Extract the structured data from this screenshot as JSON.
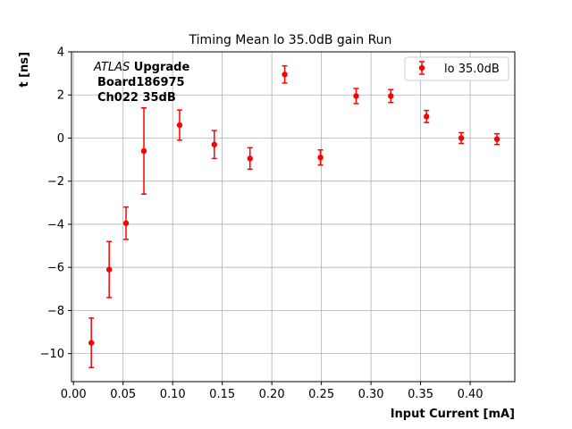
{
  "chart_data": {
    "type": "scatter",
    "title": "Timing Mean lo 35.0dB gain Run",
    "xlabel": "Input Current [mA]",
    "ylabel": "t [ns]",
    "xlim": [
      -0.002,
      0.445
    ],
    "ylim": [
      -11.3,
      4.0
    ],
    "x_ticks": [
      0.0,
      0.05,
      0.1,
      0.15,
      0.2,
      0.25,
      0.3,
      0.35,
      0.4
    ],
    "x_tick_labels": [
      "0.00",
      "0.05",
      "0.10",
      "0.15",
      "0.20",
      "0.25",
      "0.30",
      "0.35",
      "0.40"
    ],
    "y_ticks": [
      -10,
      -8,
      -6,
      -4,
      -2,
      0,
      2,
      4
    ],
    "y_tick_labels": [
      "−10",
      "−8",
      "−6",
      "−4",
      "−2",
      "0",
      "2",
      "4"
    ],
    "grid": true,
    "legend_position": "top-right",
    "annotation": {
      "line1_italic": "ATLAS",
      "line1_bold": " Upgrade",
      "line2": "Board186975",
      "line3": "Ch022 35dB"
    },
    "series": [
      {
        "name": "lo 35.0dB",
        "color": "#ff0000",
        "x": [
          0.018,
          0.036,
          0.053,
          0.071,
          0.107,
          0.142,
          0.178,
          0.213,
          0.249,
          0.285,
          0.32,
          0.356,
          0.391,
          0.427
        ],
        "y": [
          -9.5,
          -6.1,
          -3.95,
          -0.6,
          0.6,
          -0.3,
          -0.95,
          2.95,
          -0.9,
          1.95,
          1.95,
          1.0,
          0.0,
          -0.05
        ],
        "yerr": [
          1.15,
          1.3,
          0.75,
          2.0,
          0.7,
          0.65,
          0.5,
          0.4,
          0.35,
          0.35,
          0.3,
          0.28,
          0.25,
          0.25
        ]
      }
    ]
  }
}
